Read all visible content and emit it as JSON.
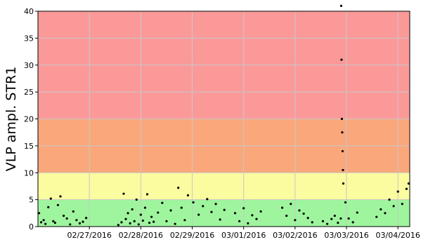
{
  "chart_data": {
    "type": "scatter",
    "ylabel": "VLP ampl. STR1",
    "ylim": [
      0,
      40
    ],
    "xlim": [
      "02/26/2016 00:00",
      "03/04/2016 05:30"
    ],
    "grid": true,
    "x_tick_labels": [
      "02/27/2016",
      "02/28/2016",
      "02/29/2016",
      "03/01/2016",
      "03/02/2016",
      "03/03/2016",
      "03/04/2016"
    ],
    "y_tick_labels": [
      "0",
      "5",
      "10",
      "15",
      "20",
      "25",
      "30",
      "35",
      "40"
    ],
    "y_ticks": [
      0,
      5,
      10,
      15,
      20,
      25,
      30,
      35,
      40
    ],
    "bands": [
      {
        "from": 0,
        "to": 5,
        "color": "#9ef59e"
      },
      {
        "from": 5,
        "to": 10,
        "color": "#fbfba0"
      },
      {
        "from": 10,
        "to": 20,
        "color": "#fba77c"
      },
      {
        "from": 20,
        "to": 40,
        "color": "#fb9999"
      }
    ],
    "point_color": "#000000",
    "series": [
      {
        "x": [
          "02/26/2016 00:30",
          "02/26/2016 01:30",
          "02/26/2016 02:40",
          "02/26/2016 03:30",
          "02/26/2016 04:50",
          "02/26/2016 06:00",
          "02/26/2016 07:10",
          "02/26/2016 08:00",
          "02/26/2016 09:20",
          "02/26/2016 10:30",
          "02/26/2016 12:00",
          "02/26/2016 13:30",
          "02/26/2016 15:00",
          "02/26/2016 16:30",
          "02/26/2016 18:00",
          "02/26/2016 19:30",
          "02/26/2016 21:00",
          "02/26/2016 22:30",
          "02/27/2016 13:30",
          "02/27/2016 15:00",
          "02/27/2016 16:00",
          "02/27/2016 17:00",
          "02/27/2016 18:00",
          "02/27/2016 19:00",
          "02/27/2016 20:00",
          "02/27/2016 21:00",
          "02/27/2016 22:00",
          "02/27/2016 23:00",
          "02/28/2016 00:00",
          "02/28/2016 01:00",
          "02/28/2016 02:00",
          "02/28/2016 03:00",
          "02/28/2016 04:00",
          "02/28/2016 05:00",
          "02/28/2016 06:00",
          "02/28/2016 08:00",
          "02/28/2016 10:00",
          "02/28/2016 12:00",
          "02/28/2016 14:00",
          "02/28/2016 16:00",
          "02/28/2016 17:30",
          "02/28/2016 19:00",
          "02/28/2016 20:30",
          "02/28/2016 22:00",
          "02/29/2016 00:30",
          "02/29/2016 03:00",
          "02/29/2016 05:00",
          "02/29/2016 07:00",
          "02/29/2016 09:00",
          "02/29/2016 11:00",
          "02/29/2016 13:00",
          "02/29/2016 15:00",
          "02/29/2016 20:00",
          "02/29/2016 22:00",
          "03/01/2016 00:00",
          "03/01/2016 02:00",
          "03/01/2016 04:00",
          "03/01/2016 06:00",
          "03/01/2016 08:00",
          "03/01/2016 18:00",
          "03/01/2016 20:00",
          "03/01/2016 22:00",
          "03/02/2016 00:00",
          "03/02/2016 02:00",
          "03/02/2016 04:00",
          "03/02/2016 06:00",
          "03/02/2016 08:00",
          "03/02/2016 13:00",
          "03/02/2016 15:00",
          "03/02/2016 17:00",
          "03/02/2016 18:30",
          "03/02/2016 20:00",
          "03/02/2016 21:20",
          "03/02/2016 21:30",
          "03/02/2016 21:40",
          "03/02/2016 21:50",
          "03/02/2016 22:00",
          "03/02/2016 22:10",
          "03/02/2016 22:20",
          "03/02/2016 22:30",
          "03/02/2016 23:30",
          "03/03/2016 01:00",
          "03/03/2016 03:00",
          "03/03/2016 05:00",
          "03/03/2016 14:00",
          "03/03/2016 16:00",
          "03/03/2016 18:00",
          "03/03/2016 20:00",
          "03/03/2016 22:00",
          "03/04/2016 00:00",
          "03/04/2016 02:00",
          "03/04/2016 04:00",
          "03/04/2016 05:00"
        ],
        "y": [
          2.5,
          0.8,
          1.2,
          0.5,
          3.6,
          5.2,
          1.0,
          0.7,
          4.0,
          5.6,
          2.0,
          1.5,
          0.4,
          2.8,
          1.2,
          0.6,
          0.9,
          1.6,
          0.3,
          0.8,
          6.1,
          1.4,
          2.5,
          0.6,
          3.2,
          1.0,
          5.0,
          0.4,
          2.2,
          1.1,
          3.5,
          6.0,
          0.7,
          1.8,
          0.9,
          2.6,
          4.4,
          1.0,
          3.0,
          0.5,
          7.2,
          3.5,
          1.2,
          5.8,
          4.5,
          2.2,
          3.8,
          5.1,
          2.7,
          4.2,
          1.3,
          3.1,
          2.5,
          1.0,
          3.4,
          0.6,
          2.1,
          1.4,
          2.8,
          3.5,
          2.0,
          4.2,
          1.2,
          3.0,
          2.4,
          1.6,
          0.8,
          1.0,
          0.5,
          1.4,
          2.0,
          0.7,
          1.5,
          41.0,
          31.0,
          20.0,
          17.5,
          14.0,
          10.5,
          8.0,
          4.5,
          1.5,
          0.8,
          2.6,
          1.8,
          3.2,
          2.5,
          5.0,
          3.8,
          6.5,
          4.2,
          7.0,
          8.0
        ]
      }
    ]
  }
}
